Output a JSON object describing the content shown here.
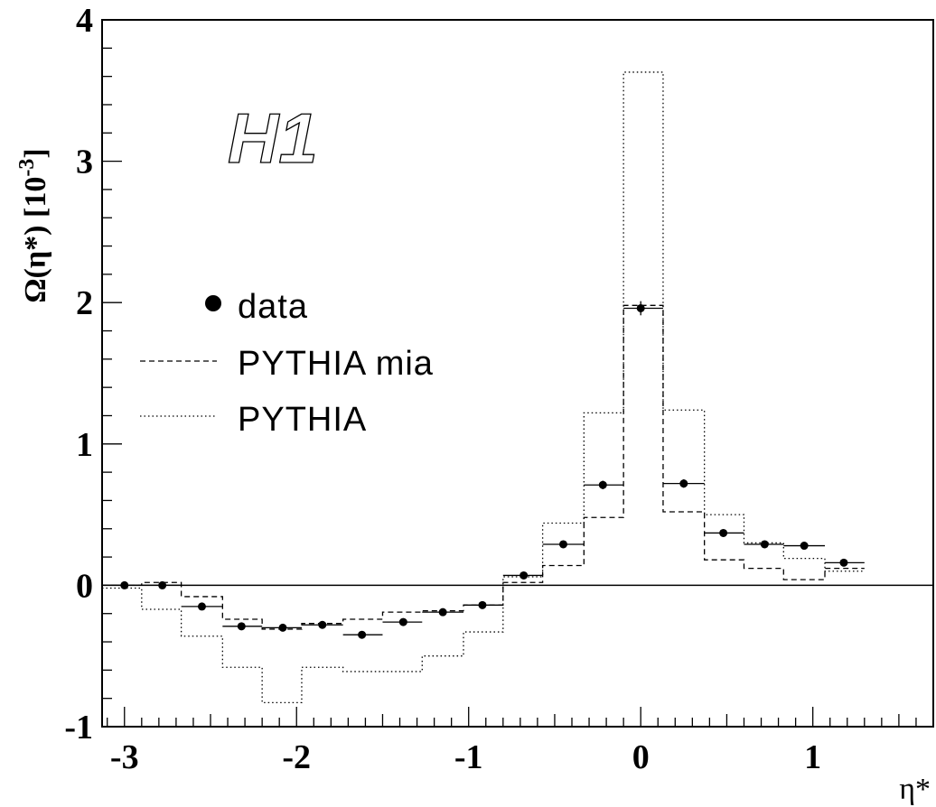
{
  "chart_data": {
    "type": "line",
    "xlabel": "η*",
    "ylabel": "Ω(η*) [10⁻³]",
    "ylabel_parts": {
      "main": "Ω(η*) [10",
      "sup": "-3",
      "close": "]"
    },
    "xlim": [
      -3.13,
      1.7
    ],
    "ylim": [
      -1,
      4
    ],
    "x_ticks": [
      -3,
      -2,
      -1,
      0,
      1
    ],
    "x_tick_labels": [
      "-3",
      "-2",
      "-1",
      "0",
      "1"
    ],
    "y_ticks": [
      -1,
      0,
      1,
      2,
      3,
      4
    ],
    "y_tick_labels": [
      "-1",
      "0",
      "1",
      "2",
      "3",
      "4"
    ],
    "annotation": "H1",
    "bin_edges": [
      -3.13,
      -2.9,
      -2.67,
      -2.43,
      -2.2,
      -1.97,
      -1.73,
      -1.5,
      -1.27,
      -1.03,
      -0.8,
      -0.57,
      -0.33,
      -0.1,
      0.13,
      0.37,
      0.6,
      0.83,
      1.07,
      1.3
    ],
    "series": [
      {
        "name": "data",
        "style": "points",
        "x": [
          -3.0,
          -2.78,
          -2.55,
          -2.32,
          -2.08,
          -1.85,
          -1.62,
          -1.38,
          -1.15,
          -0.92,
          -0.68,
          -0.45,
          -0.22,
          0.0,
          0.25,
          0.48,
          0.72,
          0.95,
          1.18
        ],
        "y": [
          0.0,
          0.0,
          -0.15,
          -0.29,
          -0.3,
          -0.28,
          -0.35,
          -0.26,
          -0.19,
          -0.14,
          0.07,
          0.29,
          0.71,
          1.96,
          0.72,
          0.37,
          0.29,
          0.28,
          0.16
        ],
        "yerr": [
          0.01,
          0.01,
          0.02,
          0.02,
          0.02,
          0.02,
          0.02,
          0.02,
          0.02,
          0.02,
          0.02,
          0.02,
          0.03,
          0.05,
          0.03,
          0.02,
          0.02,
          0.02,
          0.02
        ]
      },
      {
        "name": "PYTHIA mia",
        "style": "dashed-histogram",
        "values": [
          0.0,
          0.02,
          -0.08,
          -0.24,
          -0.31,
          -0.27,
          -0.24,
          -0.19,
          -0.18,
          -0.14,
          0.02,
          0.14,
          0.48,
          1.98,
          0.52,
          0.18,
          0.12,
          0.04,
          0.12
        ]
      },
      {
        "name": "PYTHIA",
        "style": "dotted-histogram",
        "values": [
          -0.02,
          -0.17,
          -0.36,
          -0.58,
          -0.83,
          -0.58,
          -0.61,
          -0.61,
          -0.5,
          -0.33,
          0.06,
          0.44,
          1.22,
          3.63,
          1.24,
          0.5,
          0.3,
          0.19,
          0.1
        ]
      }
    ],
    "legend": {
      "placement": "left",
      "entries": [
        {
          "label": "data",
          "marker": "dot"
        },
        {
          "label": "PYTHIA mia",
          "marker": "dashed"
        },
        {
          "label": "PYTHIA",
          "marker": "dotted"
        }
      ]
    }
  }
}
